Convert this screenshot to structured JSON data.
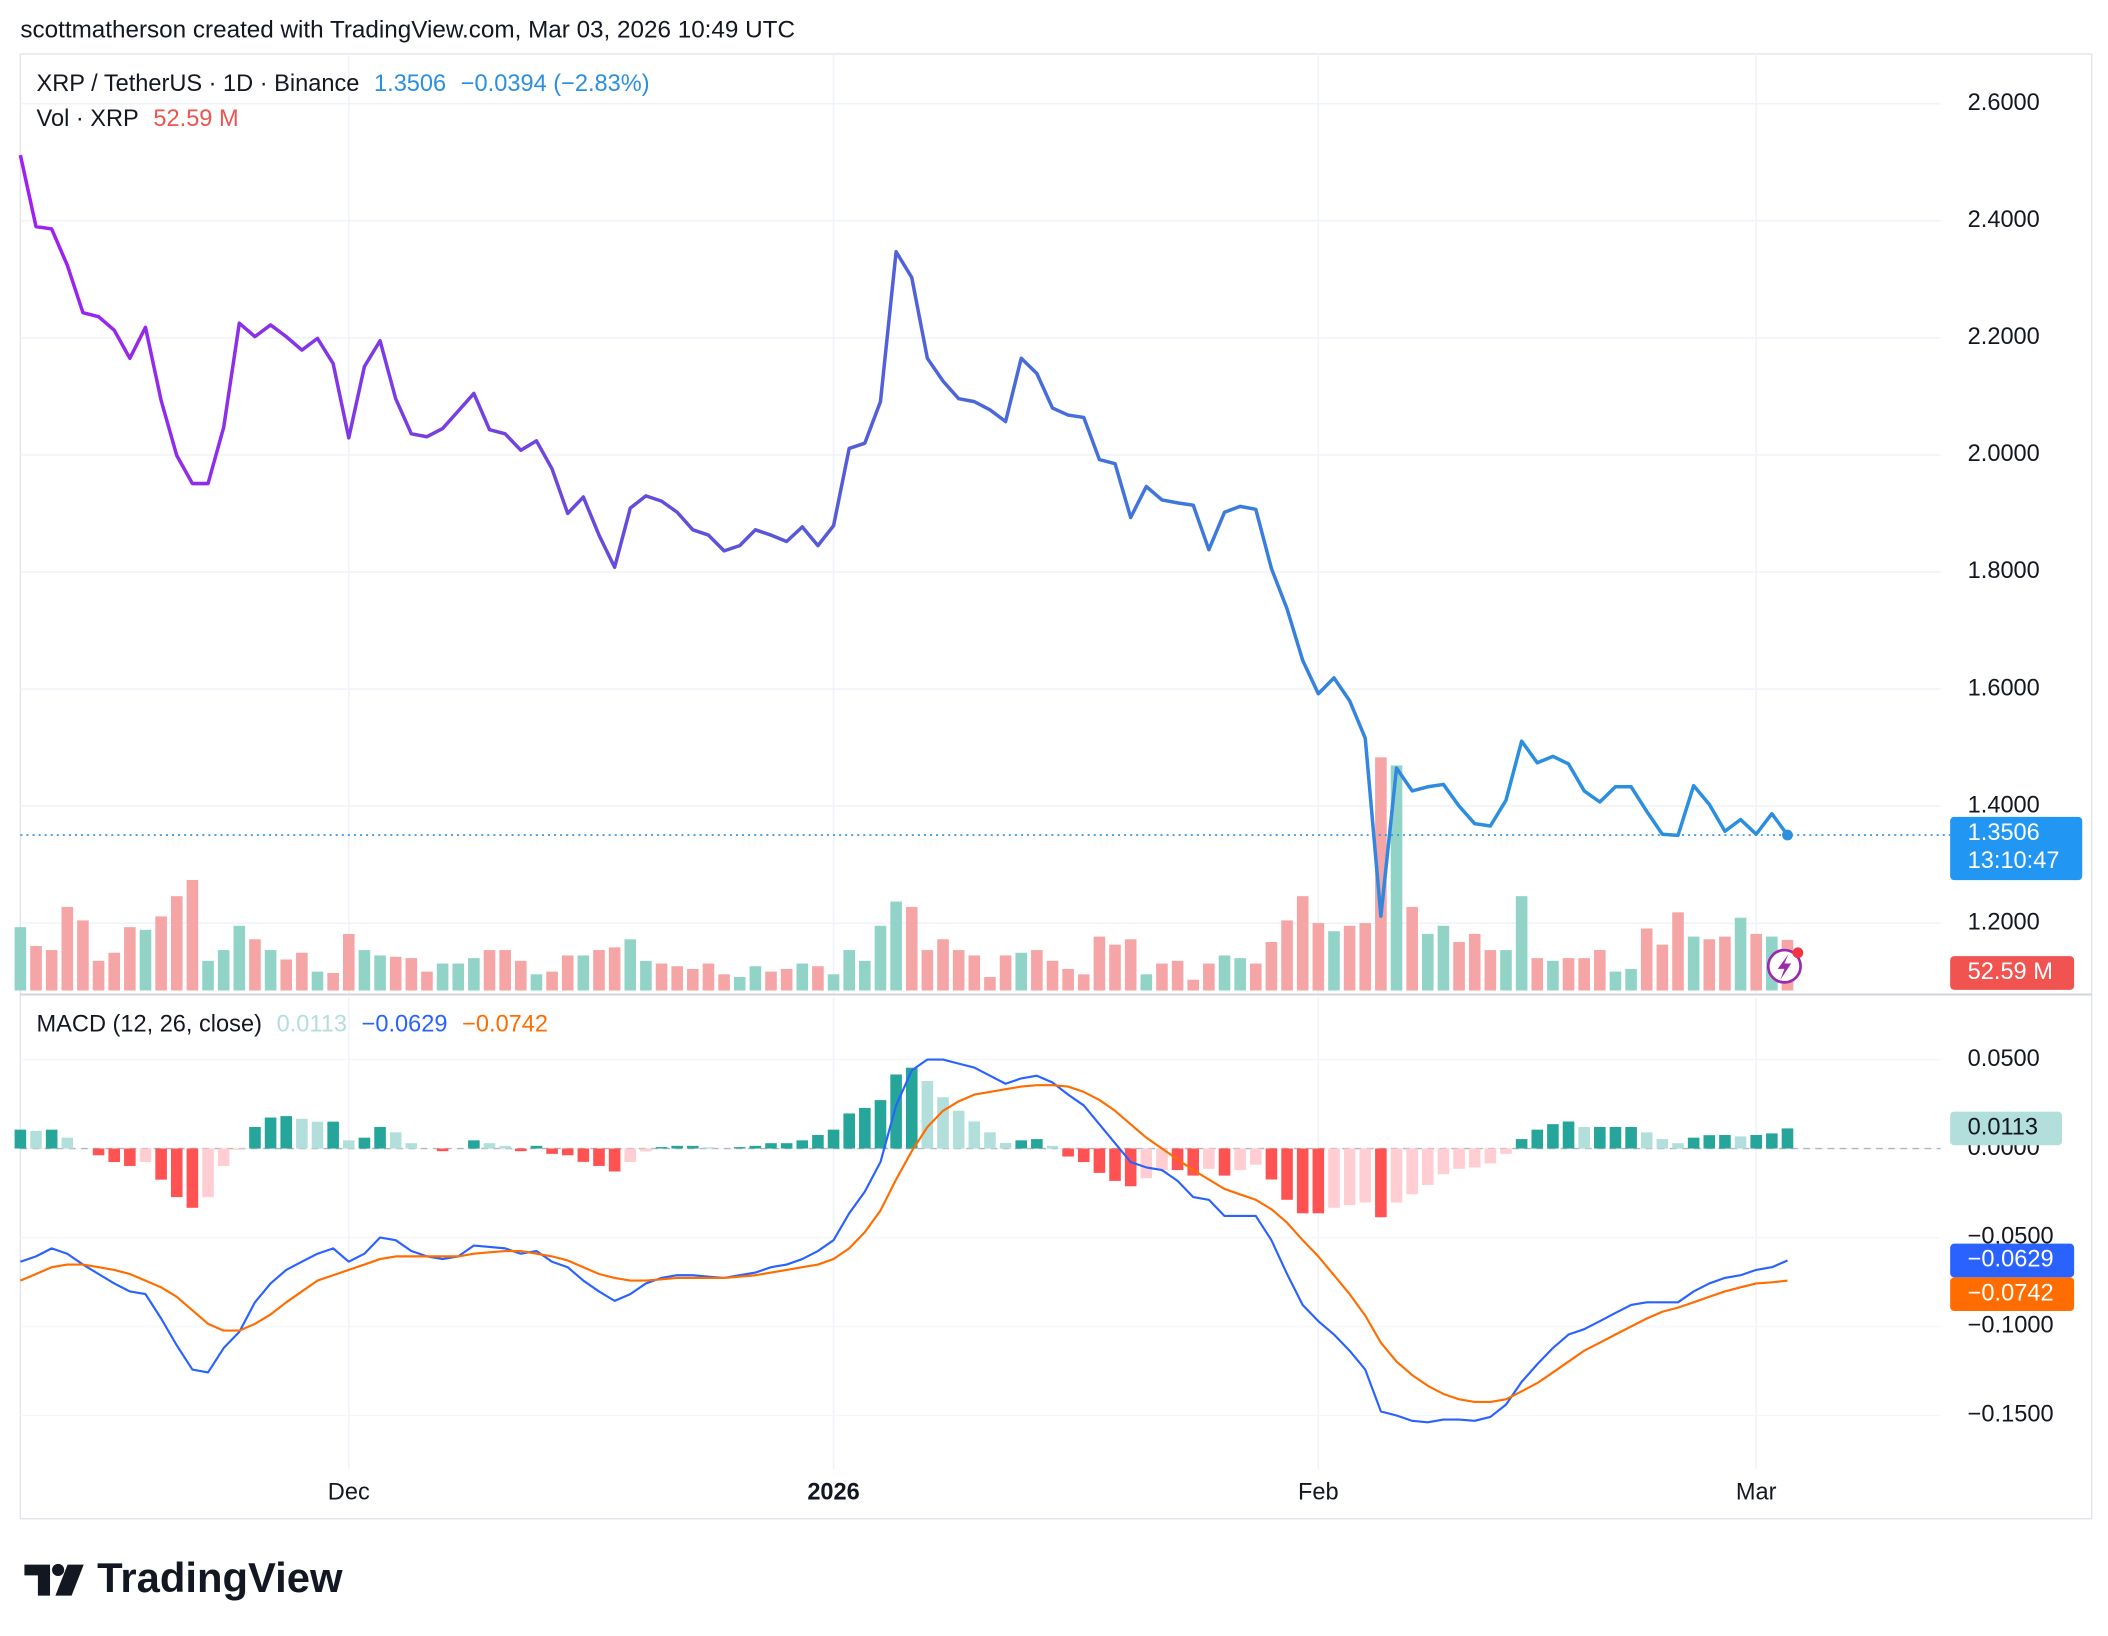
{
  "header": {
    "attribution": "scottmatherson created with TradingView.com, Mar 03, 2026 10:49 UTC"
  },
  "chart_data": [
    {
      "type": "line",
      "ylim": [
        1.085,
        2.685
      ],
      "yticks": [
        {
          "value": 1.2,
          "label": "1.2000"
        },
        {
          "value": 1.4,
          "label": "1.4000"
        },
        {
          "value": 1.6,
          "label": "1.6000"
        },
        {
          "value": 1.8,
          "label": "1.8000"
        },
        {
          "value": 2.0,
          "label": "2.0000"
        },
        {
          "value": 2.2,
          "label": "2.2000"
        },
        {
          "value": 2.4,
          "label": "2.4000"
        },
        {
          "value": 2.6,
          "label": "2.6000"
        }
      ],
      "grid": true,
      "series": [
        {
          "name": "XRP / TetherUS · 1D · Binance",
          "colors": [
            "#a020f0",
            "#5a55d8",
            "#2b8fe0"
          ],
          "change_label": "−0.0394 (−2.83%)",
          "countdown": "13:10:47",
          "values": [
            2.512,
            2.39,
            2.386,
            2.324,
            2.243,
            2.236,
            2.213,
            2.165,
            2.218,
            2.093,
            1.999,
            1.951,
            1.951,
            2.047,
            2.225,
            2.202,
            2.222,
            2.202,
            2.179,
            2.199,
            2.156,
            2.029,
            2.151,
            2.195,
            2.096,
            2.036,
            2.031,
            2.045,
            2.075,
            2.105,
            2.043,
            2.036,
            2.008,
            2.024,
            1.976,
            1.9,
            1.928,
            1.863,
            1.808,
            1.909,
            1.93,
            1.921,
            1.902,
            1.872,
            1.863,
            1.836,
            1.845,
            1.872,
            1.863,
            1.852,
            1.877,
            1.845,
            1.879,
            2.011,
            2.02,
            2.091,
            2.347,
            2.303,
            2.165,
            2.126,
            2.096,
            2.091,
            2.077,
            2.057,
            2.165,
            2.139,
            2.08,
            2.068,
            2.064,
            1.992,
            1.985,
            1.893,
            1.946,
            1.923,
            1.918,
            1.914,
            1.838,
            1.902,
            1.912,
            1.907,
            1.806,
            1.737,
            1.649,
            1.592,
            1.619,
            1.58,
            1.516,
            1.212,
            1.465,
            1.426,
            1.433,
            1.437,
            1.4,
            1.37,
            1.366,
            1.41,
            1.511,
            1.474,
            1.485,
            1.472,
            1.426,
            1.407,
            1.433,
            1.433,
            1.391,
            1.352,
            1.35,
            1.435,
            1.403,
            1.357,
            1.377,
            1.352,
            1.387,
            1.3506
          ]
        },
        {
          "name": "Vol · XRP",
          "type": "bar",
          "up_color": "#92d3c8",
          "down_color": "#f5a5a5",
          "tag_color": "#f05350",
          "last_label": "52.59 M",
          "values": [
            65.8,
            46.2,
            42,
            86.8,
            72.8,
            30.8,
            39.2,
            65.8,
            63,
            77,
            98,
            114.8,
            30.8,
            42,
            67.2,
            53.2,
            42,
            32.2,
            39.2,
            19.6,
            18.2,
            58.8,
            42,
            36.4,
            35,
            33.6,
            19.6,
            28,
            28,
            33.6,
            42,
            42,
            30.8,
            16.8,
            19.6,
            36.4,
            36.4,
            42,
            44.8,
            53.2,
            30.8,
            28,
            25.2,
            22.4,
            28,
            16.8,
            14,
            25.2,
            19.6,
            22.4,
            28,
            25.2,
            16.8,
            42,
            30.8,
            67.2,
            92.4,
            86.8,
            42,
            53.2,
            42,
            36.4,
            14,
            36.4,
            39.2,
            42,
            30.8,
            22.4,
            16.8,
            56,
            47.6,
            53.2,
            16.8,
            28,
            30.8,
            11.2,
            28,
            36.4,
            33.6,
            28,
            50.4,
            72.8,
            98,
            70,
            61.6,
            67.2,
            70,
            242.2,
            233.8,
            86.8,
            58.8,
            67.2,
            50.4,
            58.8,
            42,
            42,
            98,
            33.6,
            30.8,
            33.6,
            33.6,
            42,
            19.6,
            22.4,
            64.4,
            47.6,
            81.2,
            56,
            53.2,
            56,
            75.6,
            58.8,
            56,
            52.59
          ]
        }
      ]
    },
    {
      "type": "macd",
      "title": "MACD (12, 26, close)",
      "xlim": [
        0,
        122.8
      ],
      "xticks": [
        {
          "value": 21,
          "label": "Dec"
        },
        {
          "value": 52,
          "label": "2026",
          "bold": true
        },
        {
          "value": 83,
          "label": "Feb"
        },
        {
          "value": 111,
          "label": "Mar"
        }
      ],
      "ylim": [
        -0.18,
        0.085
      ],
      "yticks": [
        {
          "value": 0.05,
          "label": "0.0500"
        },
        {
          "value": 0,
          "label": "0.0000"
        },
        {
          "value": -0.05,
          "label": "−0.0500"
        },
        {
          "value": -0.1,
          "label": "−0.1000"
        },
        {
          "value": -0.15,
          "label": "−0.1500"
        }
      ],
      "grid": true,
      "series": [
        {
          "type": "bar",
          "rising_positive_color": "#26a69a",
          "falling_positive_color": "#b2dfdb",
          "falling_negative_color": "#ff5252",
          "rising_negative_color": "#ffcdd2",
          "values": [
            0.0106,
            0.0099,
            0.0106,
            0.0061,
            0,
            -0.0038,
            -0.0076,
            -0.0098,
            -0.0076,
            -0.0175,
            -0.0273,
            -0.0333,
            -0.0273,
            -0.0098,
            -0.0007,
            0.0121,
            0.0174,
            0.0182,
            0.0167,
            0.0151,
            0.0151,
            0.0046,
            0.0061,
            0.0121,
            0.0091,
            0.003,
            0,
            -0.0015,
            0,
            0.0046,
            0.003,
            0.0015,
            -0.0015,
            0.0015,
            -0.003,
            -0.0038,
            -0.0075,
            -0.0098,
            -0.0129,
            -0.0076,
            -0.0016,
            0.0008,
            0.0015,
            0.0015,
            0.0007,
            0,
            0.0008,
            0.0015,
            0.003,
            0.003,
            0.0046,
            0.0076,
            0.0106,
            0.0197,
            0.0228,
            0.0272,
            0.0416,
            0.0454,
            0.0379,
            0.0288,
            0.0212,
            0.0152,
            0.0091,
            0.0031,
            0.0046,
            0.0053,
            0.0015,
            -0.0045,
            -0.0076,
            -0.0137,
            -0.0182,
            -0.0212,
            -0.0167,
            -0.0121,
            -0.0121,
            -0.0152,
            -0.0114,
            -0.0152,
            -0.0121,
            -0.0091,
            -0.0174,
            -0.0288,
            -0.0364,
            -0.0364,
            -0.0333,
            -0.0318,
            -0.0303,
            -0.0386,
            -0.0303,
            -0.0257,
            -0.0205,
            -0.0144,
            -0.0114,
            -0.0106,
            -0.0084,
            -0.003,
            0.0053,
            0.0106,
            0.0137,
            0.0152,
            0.0121,
            0.0121,
            0.0121,
            0.0121,
            0.0091,
            0.0053,
            0.003,
            0.0061,
            0.0075,
            0.0076,
            0.0068,
            0.0076,
            0.0085,
            0.0113
          ]
        },
        {
          "type": "line",
          "color": "#2962ff",
          "last_label": "−0.0629",
          "values": [
            -0.0636,
            -0.0606,
            -0.0561,
            -0.0591,
            -0.0652,
            -0.0705,
            -0.0758,
            -0.0803,
            -0.0818,
            -0.0955,
            -0.1106,
            -0.1242,
            -0.1258,
            -0.1121,
            -0.103,
            -0.0864,
            -0.0758,
            -0.0682,
            -0.0636,
            -0.0591,
            -0.0561,
            -0.0636,
            -0.0591,
            -0.05,
            -0.0515,
            -0.0576,
            -0.0606,
            -0.0621,
            -0.0606,
            -0.0545,
            -0.0553,
            -0.0561,
            -0.0591,
            -0.0576,
            -0.0636,
            -0.0667,
            -0.0742,
            -0.0803,
            -0.0856,
            -0.0818,
            -0.0758,
            -0.0727,
            -0.0712,
            -0.0712,
            -0.072,
            -0.0727,
            -0.0712,
            -0.0697,
            -0.0667,
            -0.0652,
            -0.0621,
            -0.0576,
            -0.0515,
            -0.0364,
            -0.0242,
            -0.0076,
            0.0242,
            0.0439,
            0.05,
            0.05,
            0.0477,
            0.0455,
            0.0409,
            0.0364,
            0.0394,
            0.0409,
            0.0371,
            0.0303,
            0.0242,
            0.0136,
            0.003,
            -0.0076,
            -0.0106,
            -0.0121,
            -0.0182,
            -0.0273,
            -0.0288,
            -0.0379,
            -0.0379,
            -0.0379,
            -0.0515,
            -0.0705,
            -0.0879,
            -0.097,
            -0.1045,
            -0.1136,
            -0.1242,
            -0.1477,
            -0.15,
            -0.153,
            -0.1538,
            -0.1523,
            -0.1523,
            -0.153,
            -0.1508,
            -0.1439,
            -0.1311,
            -0.1212,
            -0.1121,
            -0.1045,
            -0.1015,
            -0.097,
            -0.0924,
            -0.0879,
            -0.0864,
            -0.0864,
            -0.0864,
            -0.0803,
            -0.0758,
            -0.0727,
            -0.0712,
            -0.0682,
            -0.0667,
            -0.0629
          ]
        },
        {
          "type": "line",
          "color": "#ff6d00",
          "last_label": "−0.0742",
          "values": [
            -0.0742,
            -0.0705,
            -0.0667,
            -0.0652,
            -0.0652,
            -0.0667,
            -0.0682,
            -0.0705,
            -0.0742,
            -0.078,
            -0.0833,
            -0.0909,
            -0.0985,
            -0.1023,
            -0.1023,
            -0.0985,
            -0.0932,
            -0.0864,
            -0.0803,
            -0.0742,
            -0.0712,
            -0.0682,
            -0.0652,
            -0.0621,
            -0.0606,
            -0.0606,
            -0.0606,
            -0.0606,
            -0.0606,
            -0.0591,
            -0.0583,
            -0.0576,
            -0.0576,
            -0.0591,
            -0.0606,
            -0.0629,
            -0.0667,
            -0.0705,
            -0.0727,
            -0.0742,
            -0.0742,
            -0.0735,
            -0.0727,
            -0.0727,
            -0.0727,
            -0.0727,
            -0.072,
            -0.0712,
            -0.0697,
            -0.0682,
            -0.0667,
            -0.0652,
            -0.0621,
            -0.0561,
            -0.047,
            -0.0348,
            -0.0174,
            -0.0015,
            0.0121,
            0.0212,
            0.0265,
            0.0303,
            0.0318,
            0.0333,
            0.0348,
            0.0356,
            0.0356,
            0.0348,
            0.0318,
            0.0273,
            0.0212,
            0.0136,
            0.0061,
            0.0,
            -0.0061,
            -0.0121,
            -0.0174,
            -0.0227,
            -0.0258,
            -0.0288,
            -0.0341,
            -0.0417,
            -0.0515,
            -0.0606,
            -0.0712,
            -0.0818,
            -0.0939,
            -0.1091,
            -0.1197,
            -0.1273,
            -0.1333,
            -0.1379,
            -0.1409,
            -0.1424,
            -0.1424,
            -0.1409,
            -0.1364,
            -0.1318,
            -0.1258,
            -0.1197,
            -0.1136,
            -0.1091,
            -0.1045,
            -0.1,
            -0.0955,
            -0.0917,
            -0.0894,
            -0.0864,
            -0.0833,
            -0.0803,
            -0.078,
            -0.0758,
            -0.0752,
            -0.0742
          ]
        }
      ]
    }
  ],
  "footer": {
    "logo": "TradingView"
  }
}
